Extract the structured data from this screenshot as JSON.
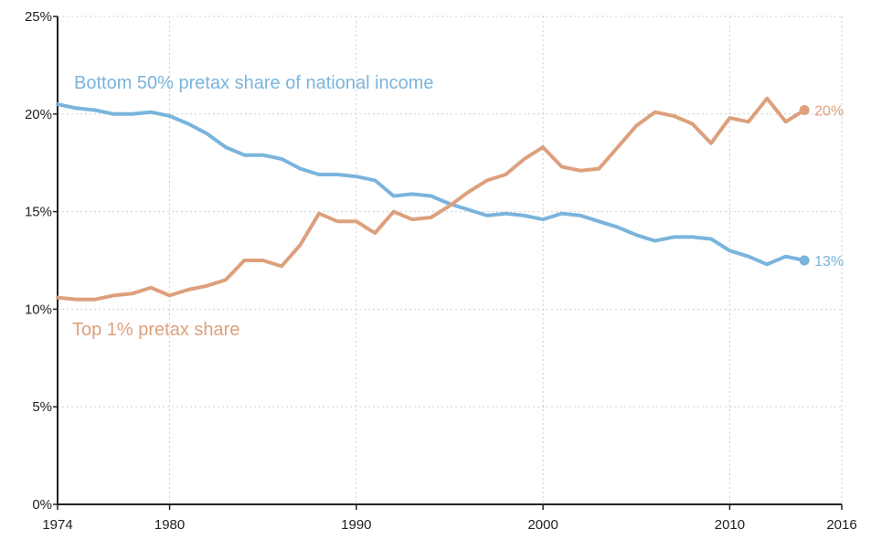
{
  "chart_data": {
    "type": "line",
    "title": "",
    "xlabel": "",
    "ylabel": "",
    "xlim": [
      1974,
      2016
    ],
    "ylim": [
      0,
      25
    ],
    "grid": true,
    "x_ticks": [
      {
        "value": 1974,
        "label": "1974"
      },
      {
        "value": 1980,
        "label": "1980"
      },
      {
        "value": 1990,
        "label": "1990"
      },
      {
        "value": 2000,
        "label": "2000"
      },
      {
        "value": 2010,
        "label": "2010"
      },
      {
        "value": 2016,
        "label": "2016"
      }
    ],
    "y_ticks": [
      {
        "value": 0,
        "label": "0%"
      },
      {
        "value": 5,
        "label": "5%"
      },
      {
        "value": 10,
        "label": "10%"
      },
      {
        "value": 15,
        "label": "15%"
      },
      {
        "value": 20,
        "label": "20%"
      },
      {
        "value": 25,
        "label": "25%"
      }
    ],
    "x": [
      1974,
      1975,
      1976,
      1977,
      1978,
      1979,
      1980,
      1981,
      1982,
      1983,
      1984,
      1985,
      1986,
      1987,
      1988,
      1989,
      1990,
      1991,
      1992,
      1993,
      1994,
      1995,
      1996,
      1997,
      1998,
      1999,
      2000,
      2001,
      2002,
      2003,
      2004,
      2005,
      2006,
      2007,
      2008,
      2009,
      2010,
      2011,
      2012,
      2013,
      2014
    ],
    "series": [
      {
        "name": "Bottom 50% pretax share of national income",
        "color": "#7ab4dc",
        "end_label": "13%",
        "values": [
          20.5,
          20.3,
          20.2,
          20.0,
          20.0,
          20.1,
          19.9,
          19.5,
          19.0,
          18.3,
          17.9,
          17.9,
          17.7,
          17.2,
          16.9,
          16.9,
          16.8,
          16.6,
          15.8,
          15.9,
          15.8,
          15.4,
          15.1,
          14.8,
          14.9,
          14.8,
          14.6,
          14.9,
          14.8,
          14.5,
          14.2,
          13.8,
          13.5,
          13.7,
          13.7,
          13.6,
          13.0,
          12.7,
          12.3,
          12.7,
          12.5
        ]
      },
      {
        "name": "Top 1% pretax share",
        "color": "#dda07d",
        "end_label": "20%",
        "values": [
          10.6,
          10.5,
          10.5,
          10.7,
          10.8,
          11.1,
          10.7,
          11.0,
          11.2,
          11.5,
          12.5,
          12.5,
          12.2,
          13.3,
          14.9,
          14.5,
          14.5,
          13.9,
          15.0,
          14.6,
          14.7,
          15.3,
          16.0,
          16.6,
          16.9,
          17.7,
          18.3,
          17.3,
          17.1,
          17.2,
          18.3,
          19.4,
          20.1,
          19.9,
          19.5,
          18.5,
          19.8,
          19.6,
          20.8,
          19.6,
          20.2
        ]
      }
    ]
  }
}
